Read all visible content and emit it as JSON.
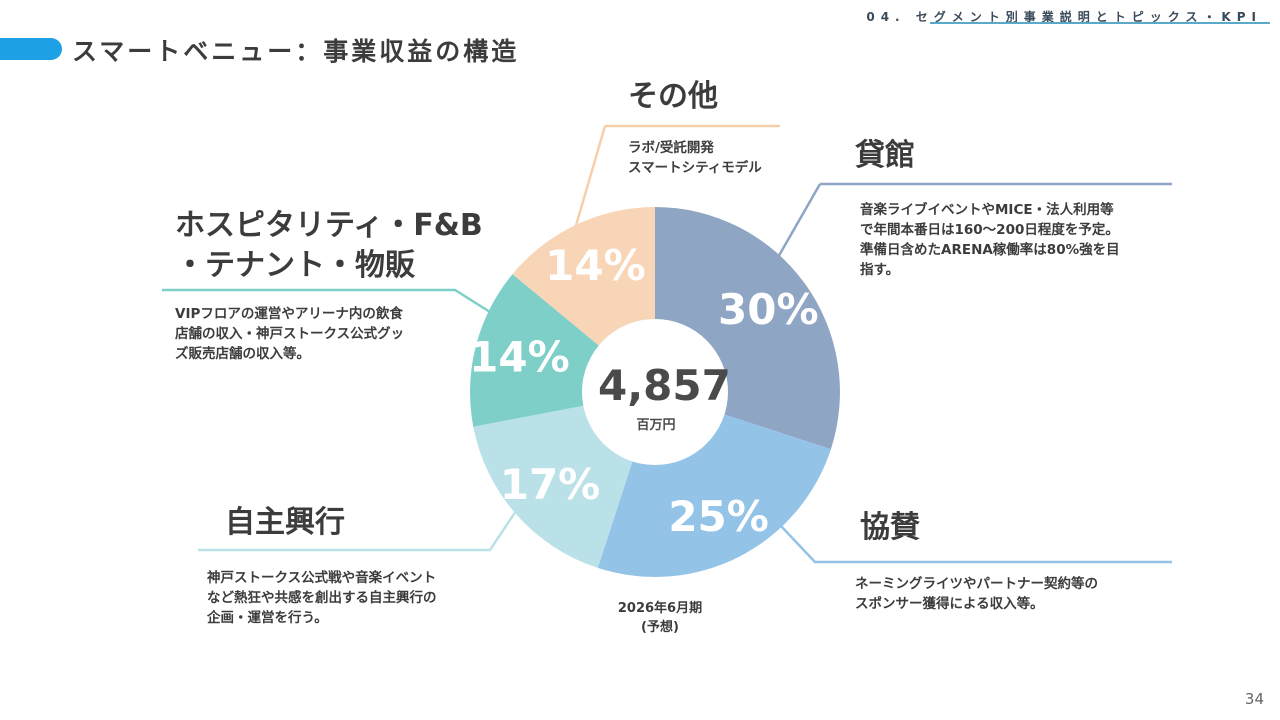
{
  "header": {
    "section": "04. セグメント別事業説明とトピックス・KPI",
    "title": "スマートベニュー：事業収益の構造"
  },
  "chart_data": {
    "type": "pie",
    "center_value": "4,857",
    "center_unit": "百万円",
    "period": "2026年6月期",
    "period_note": "(予想)",
    "slices": [
      {
        "name": "貸館",
        "value": 30,
        "label": "30%",
        "color": "#8fa5c4",
        "desc": [
          "音楽ライブイベントやMICE・法人利用等",
          "で年間本番日は160〜200日程度を予定。",
          "準備日含めたARENA稼働率は80%強を目",
          "指す。"
        ]
      },
      {
        "name": "協賛",
        "value": 25,
        "label": "25%",
        "color": "#94c3e8",
        "desc": [
          "ネーミングライツやパートナー契約等の",
          "スポンサー獲得による収入等。"
        ]
      },
      {
        "name": "自主興行",
        "value": 17,
        "label": "17%",
        "color": "#b9e1e7",
        "desc": [
          "神戸ストークス公式戦や音楽イベント",
          "など熱狂や共感を創出する自主興行の",
          "企画・運営を行う。"
        ]
      },
      {
        "name": "ホスピタリティ・F&B・テナント・物販",
        "title_lines": [
          "ホスピタリティ・F&B",
          "・テナント・物販"
        ],
        "value": 14,
        "label": "14%",
        "color": "#7fcfc9",
        "desc": [
          "VIPフロアの運営やアリーナ内の飲食",
          "店舗の収入・神戸ストークス公式グッ",
          "ズ販売店舗の収入等。"
        ]
      },
      {
        "name": "その他",
        "value": 14,
        "label": "14%",
        "color": "#f9d5b8",
        "desc": [
          "ラボ/受託開発",
          "スマートシティモデル"
        ]
      }
    ]
  },
  "footer": {
    "page_number": "34"
  }
}
